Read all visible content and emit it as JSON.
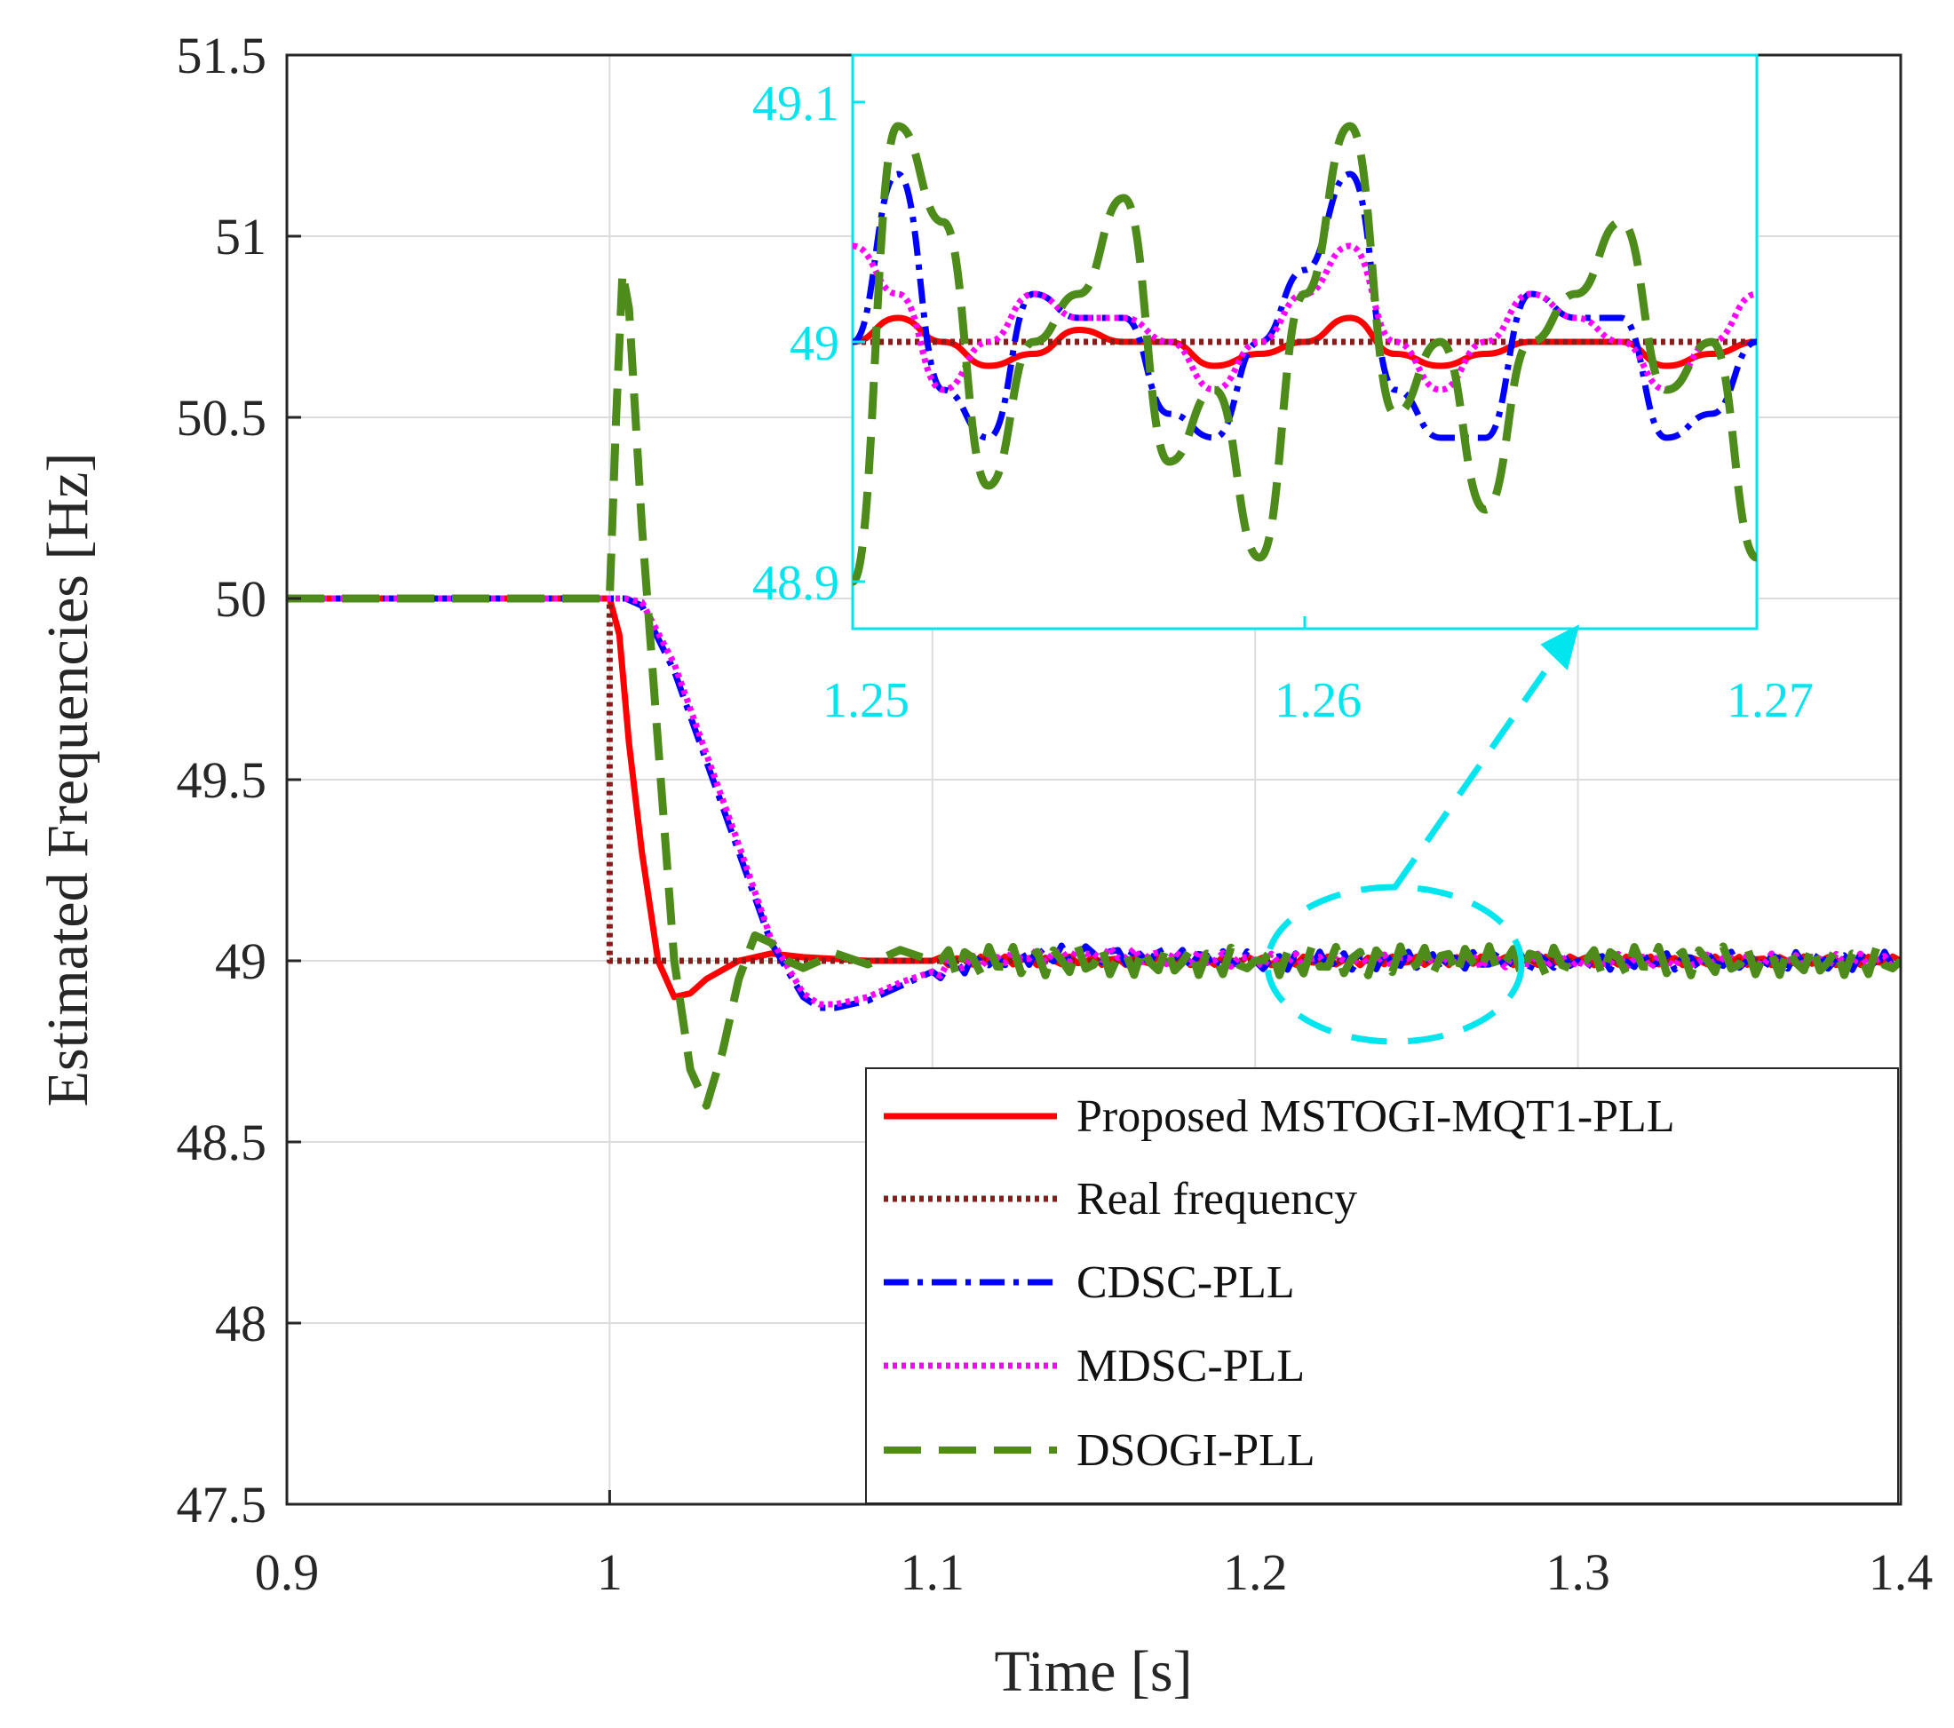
{
  "chart_data": [
    {
      "type": "line",
      "role": "main",
      "xlabel": "Time [s]",
      "ylabel": "Estimated Frequencies [Hz]",
      "xlim": [
        0.9,
        1.4
      ],
      "ylim": [
        47.5,
        51.5
      ],
      "xticks": [
        0.9,
        1,
        1.1,
        1.2,
        1.3,
        1.4
      ],
      "xtick_labels": [
        "0.9",
        "1",
        "1.1",
        "1.2",
        "1.3",
        "1.4"
      ],
      "yticks": [
        47.5,
        48,
        48.5,
        49,
        49.5,
        50,
        50.5,
        51,
        51.5
      ],
      "ytick_labels": [
        "47.5",
        "48",
        "48.5",
        "49",
        "49.5",
        "50",
        "50.5",
        "51",
        "51.5"
      ],
      "grid": true,
      "legend_position": "bottom-right",
      "series": [
        {
          "name": "Proposed MSTOGI-MQT1-PLL",
          "color": "#ff0000",
          "style": "solid",
          "x": [
            0.9,
            1.0,
            1.003,
            1.006,
            1.01,
            1.015,
            1.02,
            1.025,
            1.03,
            1.04,
            1.05,
            1.06,
            1.08,
            1.1,
            1.2,
            1.3,
            1.4
          ],
          "y": [
            50.0,
            50.0,
            49.9,
            49.6,
            49.3,
            49.0,
            48.9,
            48.91,
            48.95,
            49.0,
            49.02,
            49.01,
            49.0,
            49.0,
            49.0,
            49.0,
            49.0
          ]
        },
        {
          "name": "Real frequency",
          "color": "#8b1a1a",
          "style": "dotted",
          "x": [
            0.9,
            1.0,
            1.0,
            1.4
          ],
          "y": [
            50.0,
            50.0,
            49.0,
            49.0
          ]
        },
        {
          "name": "CDSC-PLL",
          "color": "#0000ff",
          "style": "dash-dot",
          "x": [
            0.9,
            1.0,
            1.005,
            1.01,
            1.02,
            1.03,
            1.04,
            1.05,
            1.06,
            1.065,
            1.07,
            1.08,
            1.09,
            1.1,
            1.12,
            1.15,
            1.2,
            1.3,
            1.4
          ],
          "y": [
            50.0,
            50.0,
            50.0,
            49.98,
            49.8,
            49.55,
            49.3,
            49.05,
            48.9,
            48.87,
            48.87,
            48.89,
            48.93,
            48.97,
            49.01,
            49.02,
            49.0,
            49.0,
            49.0
          ]
        },
        {
          "name": "MDSC-PLL",
          "color": "#ff00ff",
          "style": "dotted",
          "x": [
            0.9,
            1.0,
            1.005,
            1.01,
            1.02,
            1.03,
            1.04,
            1.05,
            1.06,
            1.065,
            1.07,
            1.08,
            1.09,
            1.1,
            1.12,
            1.15,
            1.2,
            1.3,
            1.4
          ],
          "y": [
            50.0,
            50.0,
            50.0,
            49.99,
            49.82,
            49.57,
            49.32,
            49.06,
            48.91,
            48.88,
            48.88,
            48.9,
            48.94,
            48.97,
            49.01,
            49.02,
            49.0,
            49.0,
            49.0
          ]
        },
        {
          "name": "DSOGI-PLL",
          "color": "#4d8b1a",
          "style": "dashed",
          "x": [
            0.9,
            1.0,
            1.002,
            1.004,
            1.006,
            1.008,
            1.01,
            1.015,
            1.02,
            1.025,
            1.03,
            1.035,
            1.04,
            1.045,
            1.05,
            1.055,
            1.06,
            1.07,
            1.08,
            1.09,
            1.1,
            1.2,
            1.3,
            1.4
          ],
          "y": [
            50.0,
            50.0,
            50.5,
            50.9,
            50.8,
            50.5,
            50.2,
            49.6,
            49.0,
            48.7,
            48.6,
            48.75,
            48.95,
            49.07,
            49.05,
            49.0,
            48.98,
            49.02,
            48.99,
            49.03,
            49.0,
            49.0,
            49.0,
            49.0
          ]
        }
      ]
    },
    {
      "type": "line",
      "role": "inset",
      "xlim": [
        1.25,
        1.27
      ],
      "ylim": [
        48.88,
        49.12
      ],
      "xticks": [
        1.25,
        1.26,
        1.27
      ],
      "xtick_labels": [
        "1.25",
        "1.26",
        "1.27"
      ],
      "yticks": [
        48.9,
        49,
        49.1
      ],
      "ytick_labels": [
        "48.9",
        "49",
        "49.1"
      ],
      "color": "#00e5ee",
      "series": [
        {
          "name": "Proposed MSTOGI-MQT1-PLL",
          "x": [
            1.25,
            1.251,
            1.252,
            1.253,
            1.254,
            1.255,
            1.256,
            1.257,
            1.258,
            1.259,
            1.26,
            1.261,
            1.262,
            1.263,
            1.264,
            1.265,
            1.266,
            1.267,
            1.268,
            1.269,
            1.27
          ],
          "y": [
            49.0,
            49.01,
            49.0,
            48.99,
            48.995,
            49.005,
            49.0,
            49.0,
            48.99,
            48.995,
            49.0,
            49.01,
            48.995,
            48.99,
            48.995,
            49.0,
            49.0,
            49.0,
            48.99,
            48.995,
            49.0
          ]
        },
        {
          "name": "Real frequency",
          "x": [
            1.25,
            1.27
          ],
          "y": [
            49.0,
            49.0
          ]
        },
        {
          "name": "CDSC-PLL",
          "x": [
            1.25,
            1.251,
            1.252,
            1.253,
            1.254,
            1.255,
            1.256,
            1.257,
            1.258,
            1.259,
            1.26,
            1.261,
            1.262,
            1.263,
            1.264,
            1.265,
            1.266,
            1.267,
            1.268,
            1.269,
            1.27
          ],
          "y": [
            49.0,
            49.07,
            48.98,
            48.96,
            49.02,
            49.01,
            49.01,
            48.97,
            48.96,
            49.0,
            49.03,
            49.07,
            48.98,
            48.96,
            48.96,
            49.02,
            49.01,
            49.01,
            48.96,
            48.97,
            49.0
          ]
        },
        {
          "name": "MDSC-PLL",
          "x": [
            1.25,
            1.251,
            1.252,
            1.253,
            1.254,
            1.255,
            1.256,
            1.257,
            1.258,
            1.259,
            1.26,
            1.261,
            1.262,
            1.263,
            1.264,
            1.265,
            1.266,
            1.267,
            1.268,
            1.269,
            1.27
          ],
          "y": [
            49.04,
            49.02,
            48.98,
            49.0,
            49.02,
            49.01,
            49.01,
            49.0,
            48.98,
            49.0,
            49.02,
            49.04,
            49.0,
            48.98,
            49.0,
            49.02,
            49.01,
            49.0,
            48.98,
            49.0,
            49.02
          ]
        },
        {
          "name": "DSOGI-PLL",
          "x": [
            1.25,
            1.251,
            1.252,
            1.253,
            1.254,
            1.255,
            1.256,
            1.257,
            1.258,
            1.259,
            1.26,
            1.261,
            1.262,
            1.263,
            1.264,
            1.265,
            1.266,
            1.267,
            1.268,
            1.269,
            1.27
          ],
          "y": [
            48.9,
            49.09,
            49.05,
            48.94,
            49.0,
            49.02,
            49.06,
            48.95,
            48.98,
            48.91,
            49.02,
            49.09,
            48.97,
            49.0,
            48.93,
            49.0,
            49.02,
            49.05,
            48.98,
            49.0,
            48.91
          ]
        }
      ]
    }
  ]
}
